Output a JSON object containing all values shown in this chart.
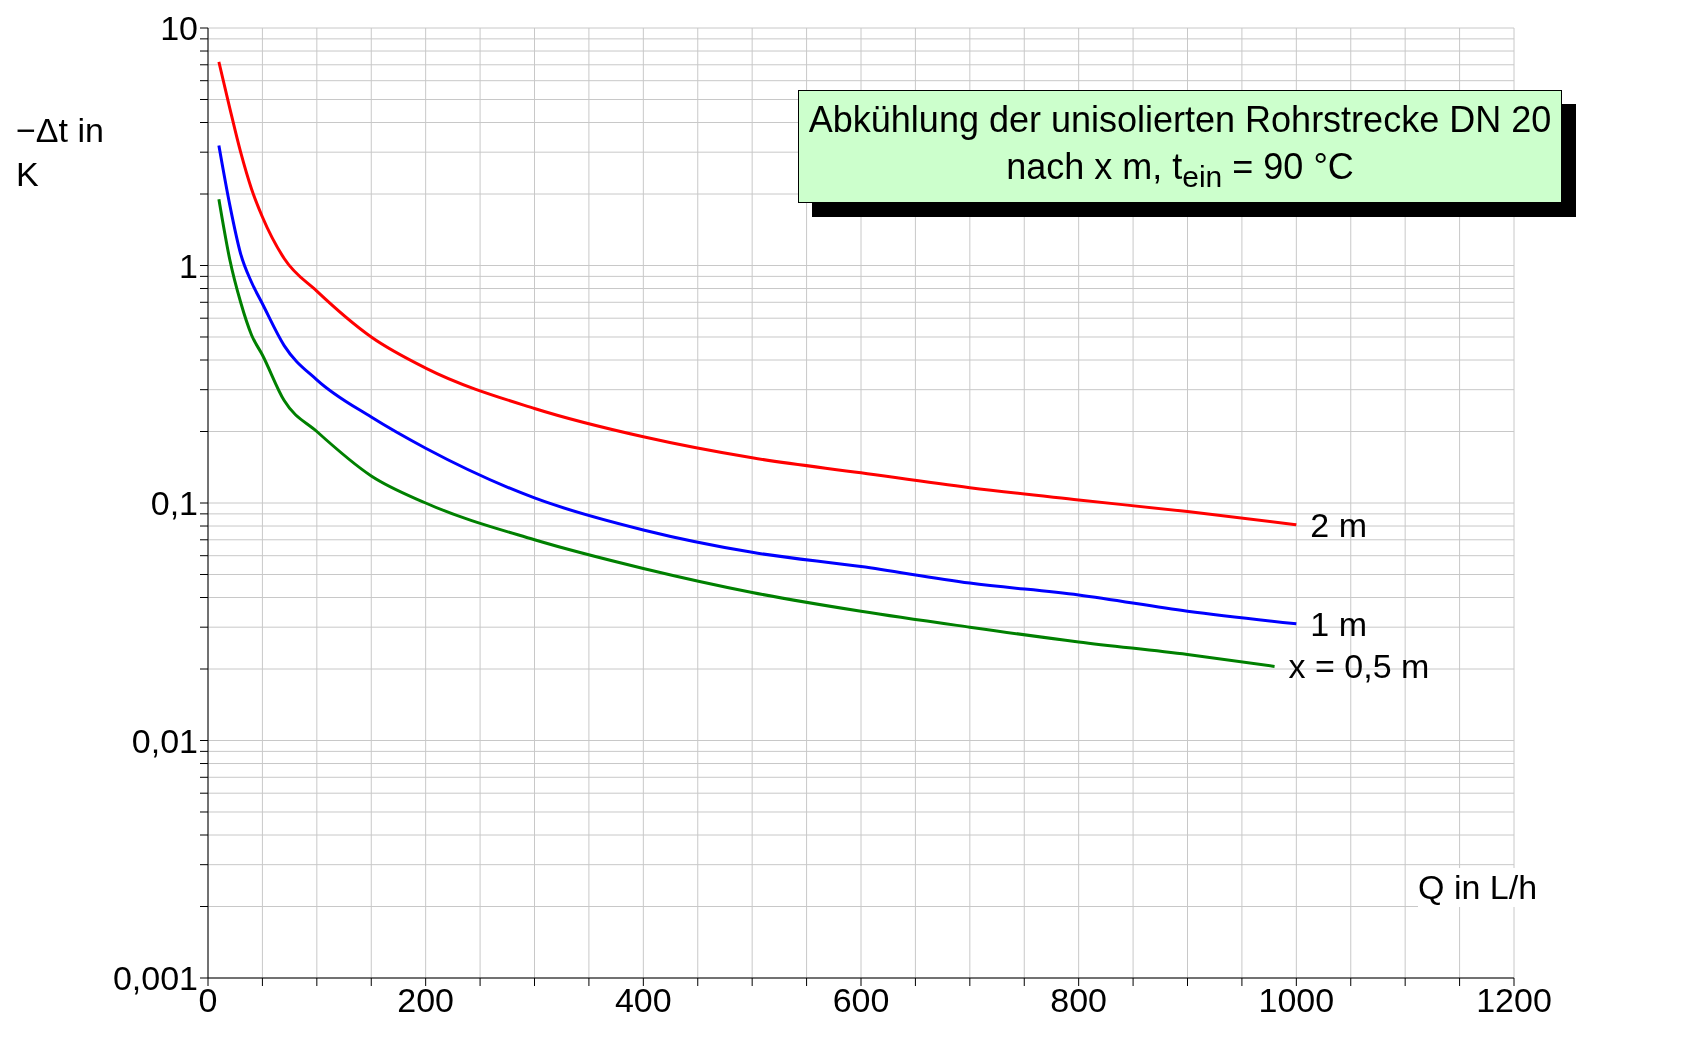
{
  "chart_data": {
    "type": "line",
    "title": "Abkühlung der unisolierten Rohrstrecke DN 20 nach x m, t$_{ein}$ = 90 °C",
    "xlabel": "Q in L/h",
    "ylabel": "−Δt in K",
    "log": "y",
    "grid": true,
    "line_style": "solid",
    "marker": "none",
    "x": [
      10,
      20,
      30,
      40,
      50,
      70,
      100,
      150,
      200,
      300,
      400,
      500,
      600,
      700,
      800,
      900,
      1000
    ],
    "xlim": [
      0,
      1200
    ],
    "xticks": [
      0,
      {
        "value": 50,
        "label": null
      },
      200,
      {
        "value": 100,
        "label": null
      },
      {
        "value": 150,
        "label": null
      },
      {
        "value": 250,
        "label": null
      },
      {
        "value": 300,
        "label": null
      },
      {
        "value": 350,
        "label": null
      },
      400,
      {
        "value": 450,
        "label": null
      },
      {
        "value": 500,
        "label": null
      },
      {
        "value": 550,
        "label": null
      },
      600,
      {
        "value": 650,
        "label": null
      },
      {
        "value": 700,
        "label": null
      },
      {
        "value": 750,
        "label": null
      },
      800,
      {
        "value": 850,
        "label": null
      },
      {
        "value": 900,
        "label": null
      },
      {
        "value": 950,
        "label": null
      },
      1000,
      {
        "value": 1050,
        "label": null
      },
      {
        "value": 1100,
        "label": null
      },
      {
        "value": 1150,
        "label": null
      },
      1200
    ],
    "ylim": [
      0.001,
      10
    ],
    "yticks": [
      {
        "value": 0.001,
        "label": "0,001"
      },
      {
        "value": 0.002,
        "label": null
      },
      {
        "value": 0.003,
        "label": null
      },
      {
        "value": 0.004,
        "label": null
      },
      {
        "value": 0.005,
        "label": null
      },
      {
        "value": 0.006,
        "label": null
      },
      {
        "value": 0.007,
        "label": null
      },
      {
        "value": 0.008,
        "label": null
      },
      {
        "value": 0.009,
        "label": null
      },
      {
        "value": 0.01,
        "label": "0,01"
      },
      {
        "value": 0.02,
        "label": null
      },
      {
        "value": 0.03,
        "label": null
      },
      {
        "value": 0.04,
        "label": null
      },
      {
        "value": 0.05,
        "label": null
      },
      {
        "value": 0.06,
        "label": null
      },
      {
        "value": 0.07,
        "label": null
      },
      {
        "value": 0.08,
        "label": null
      },
      {
        "value": 0.09,
        "label": null
      },
      {
        "value": 0.1,
        "label": "0,1"
      },
      {
        "value": 0.2,
        "label": null
      },
      {
        "value": 0.3,
        "label": null
      },
      {
        "value": 0.4,
        "label": null
      },
      {
        "value": 0.5,
        "label": null
      },
      {
        "value": 0.6,
        "label": null
      },
      {
        "value": 0.7,
        "label": null
      },
      {
        "value": 0.8,
        "label": null
      },
      {
        "value": 0.9,
        "label": null
      },
      1,
      {
        "value": 2,
        "label": null
      },
      {
        "value": 3,
        "label": null
      },
      {
        "value": 4,
        "label": null
      },
      {
        "value": 5,
        "label": null
      },
      {
        "value": 6,
        "label": null
      },
      {
        "value": 7,
        "label": null
      },
      {
        "value": 8,
        "label": null
      },
      {
        "value": 9,
        "label": null
      },
      10
    ],
    "series": [
      {
        "name": "2 m",
        "color": "#ff0000",
        "values": [
          7.2,
          4.6,
          3.0,
          2.1,
          1.6,
          1.07,
          0.78,
          0.5,
          0.37,
          0.25,
          0.19,
          0.155,
          0.134,
          0.116,
          0.103,
          0.092,
          0.081
        ]
      },
      {
        "name": "1 m",
        "color": "#0000ff",
        "values": [
          3.2,
          1.8,
          1.12,
          0.85,
          0.69,
          0.46,
          0.33,
          0.23,
          0.17,
          0.105,
          0.077,
          0.062,
          0.054,
          0.046,
          0.041,
          0.035,
          0.031
        ]
      },
      {
        "name": "x = 0,5 m",
        "color": "#008000",
        "x": [
          10,
          20,
          30,
          40,
          50,
          70,
          100,
          150,
          200,
          300,
          400,
          500,
          600,
          700,
          800,
          900,
          980
        ],
        "values": [
          1.9,
          1.06,
          0.7,
          0.51,
          0.42,
          0.27,
          0.2,
          0.13,
          0.1,
          0.07,
          0.053,
          0.042,
          0.035,
          0.03,
          0.026,
          0.023,
          0.0205
        ]
      }
    ]
  }
}
